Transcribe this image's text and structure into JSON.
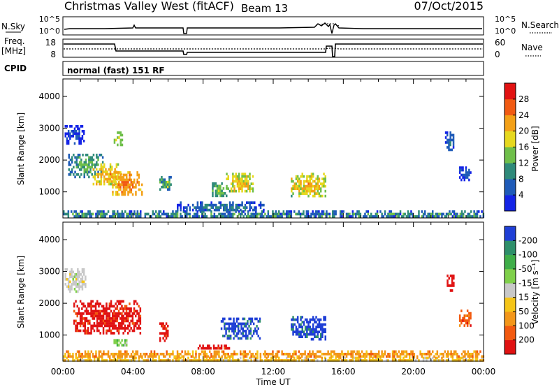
{
  "header": {
    "title": "Christmas Valley West (fitACF)",
    "beam": "Beam 13",
    "date": "07/Oct/2015"
  },
  "strips": {
    "nsky": {
      "label": "N.Sky",
      "left_ticks": [
        "10^5",
        "10^0"
      ],
      "right_label": "N.Search",
      "right_ticks": [
        "10^5",
        "10^0"
      ]
    },
    "freq": {
      "label_line1": "Freq.",
      "label_line2": "[MHz]",
      "left_ticks": [
        "18",
        "8"
      ],
      "right_label": "Nave",
      "right_ticks": [
        "60",
        "0"
      ]
    },
    "cpid": {
      "label": "CPID",
      "value": "normal (fast) 151 RF"
    }
  },
  "chart_data": [
    {
      "type": "heatmap",
      "panel": "power",
      "ylabel": "Slant Range [km]",
      "xlabel": "",
      "yticks": [
        1000,
        2000,
        3000,
        4000
      ],
      "ylim": [
        180,
        4550
      ],
      "xlim_hours": [
        0,
        24
      ],
      "xticks_hours": [
        0,
        4,
        8,
        12,
        16,
        20,
        24
      ],
      "colorbar": {
        "label": "Power [dB]",
        "ticks": [
          "4",
          "8",
          "12",
          "16",
          "20",
          "24",
          "28"
        ],
        "range": [
          0,
          32
        ],
        "colors": [
          "#1424e6",
          "#1f5bb8",
          "#2f8a7a",
          "#6fbf4a",
          "#e6d81e",
          "#f3a017",
          "#f15a12",
          "#e21212"
        ]
      },
      "echo_regions": [
        {
          "t0": 0.0,
          "t1": 24.0,
          "r0": 200,
          "r1": 420,
          "value": 10,
          "spread": 10
        },
        {
          "t0": 0.1,
          "t1": 1.3,
          "r0": 2500,
          "r1": 3100,
          "value": 6,
          "spread": 4
        },
        {
          "t0": 0.3,
          "t1": 2.3,
          "r0": 1500,
          "r1": 2200,
          "value": 13,
          "spread": 6
        },
        {
          "t0": 1.7,
          "t1": 3.3,
          "r0": 1250,
          "r1": 1900,
          "value": 22,
          "spread": 6
        },
        {
          "t0": 2.8,
          "t1": 4.5,
          "r0": 900,
          "r1": 1650,
          "value": 25,
          "spread": 5
        },
        {
          "t0": 2.9,
          "t1": 3.4,
          "r0": 2500,
          "r1": 2900,
          "value": 18,
          "spread": 4
        },
        {
          "t0": 5.5,
          "t1": 6.2,
          "r0": 1050,
          "r1": 1500,
          "value": 14,
          "spread": 8
        },
        {
          "t0": 8.5,
          "t1": 9.3,
          "r0": 900,
          "r1": 1300,
          "value": 15,
          "spread": 6
        },
        {
          "t0": 9.3,
          "t1": 10.9,
          "r0": 1000,
          "r1": 1600,
          "value": 20,
          "spread": 8
        },
        {
          "t0": 13.0,
          "t1": 15.0,
          "r0": 900,
          "r1": 1600,
          "value": 21,
          "spread": 8
        },
        {
          "t0": 6.5,
          "t1": 11.5,
          "r0": 400,
          "r1": 700,
          "value": 9,
          "spread": 6
        },
        {
          "t0": 21.8,
          "t1": 22.3,
          "r0": 2300,
          "r1": 2900,
          "value": 8,
          "spread": 4
        },
        {
          "t0": 22.6,
          "t1": 23.3,
          "r0": 1400,
          "r1": 1800,
          "value": 7,
          "spread": 4
        }
      ]
    },
    {
      "type": "heatmap",
      "panel": "velocity",
      "ylabel": "Slant Range [km]",
      "xlabel": "Time UT",
      "yticks": [
        1000,
        2000,
        3000,
        4000
      ],
      "ylim": [
        180,
        4550
      ],
      "xlim_hours": [
        0,
        24
      ],
      "xticks_hours": [
        0,
        4,
        8,
        12,
        16,
        20,
        24
      ],
      "xtick_labels": [
        "00:00",
        "04:00",
        "08:00",
        "12:00",
        "16:00",
        "20:00",
        "00:00"
      ],
      "colorbar": {
        "label": "Velocity [m s⁻¹]",
        "ticks": [
          "200",
          "100",
          "50",
          "15",
          "-15",
          "-50",
          "-100",
          "-200"
        ],
        "colors": [
          "#1f3fd6",
          "#2e8f6a",
          "#3fae49",
          "#7fd04a",
          "#c8c8c8",
          "#f5c518",
          "#f39619",
          "#f2590f",
          "#e01212"
        ]
      },
      "echo_regions": [
        {
          "t0": 0.0,
          "t1": 24.0,
          "r0": 200,
          "r1": 320,
          "value": 5,
          "spread": 0
        },
        {
          "t0": 0.0,
          "t1": 24.0,
          "r0": 320,
          "r1": 520,
          "value": 6,
          "spread": 0
        },
        {
          "t0": 0.1,
          "t1": 1.3,
          "r0": 2400,
          "r1": 3100,
          "value": 4,
          "spread": 0
        },
        {
          "t0": 0.6,
          "t1": 4.4,
          "r0": 1100,
          "r1": 2100,
          "value": 8,
          "spread": 0
        },
        {
          "t0": 2.8,
          "t1": 3.6,
          "r0": 700,
          "r1": 950,
          "value": 3,
          "spread": 0
        },
        {
          "t0": 5.5,
          "t1": 6.0,
          "r0": 850,
          "r1": 1400,
          "value": 8,
          "spread": 0
        },
        {
          "t0": 7.6,
          "t1": 9.5,
          "r0": 550,
          "r1": 700,
          "value": 8,
          "spread": 0
        },
        {
          "t0": 9.0,
          "t1": 11.2,
          "r0": 900,
          "r1": 1550,
          "value": 0,
          "spread": 0
        },
        {
          "t0": 13.0,
          "t1": 15.0,
          "r0": 850,
          "r1": 1600,
          "value": 0,
          "spread": 0
        },
        {
          "t0": 21.9,
          "t1": 22.4,
          "r0": 2400,
          "r1": 2900,
          "value": 8,
          "spread": 0
        },
        {
          "t0": 22.6,
          "t1": 23.3,
          "r0": 1300,
          "r1": 1800,
          "value": 7,
          "spread": 0
        }
      ]
    }
  ]
}
